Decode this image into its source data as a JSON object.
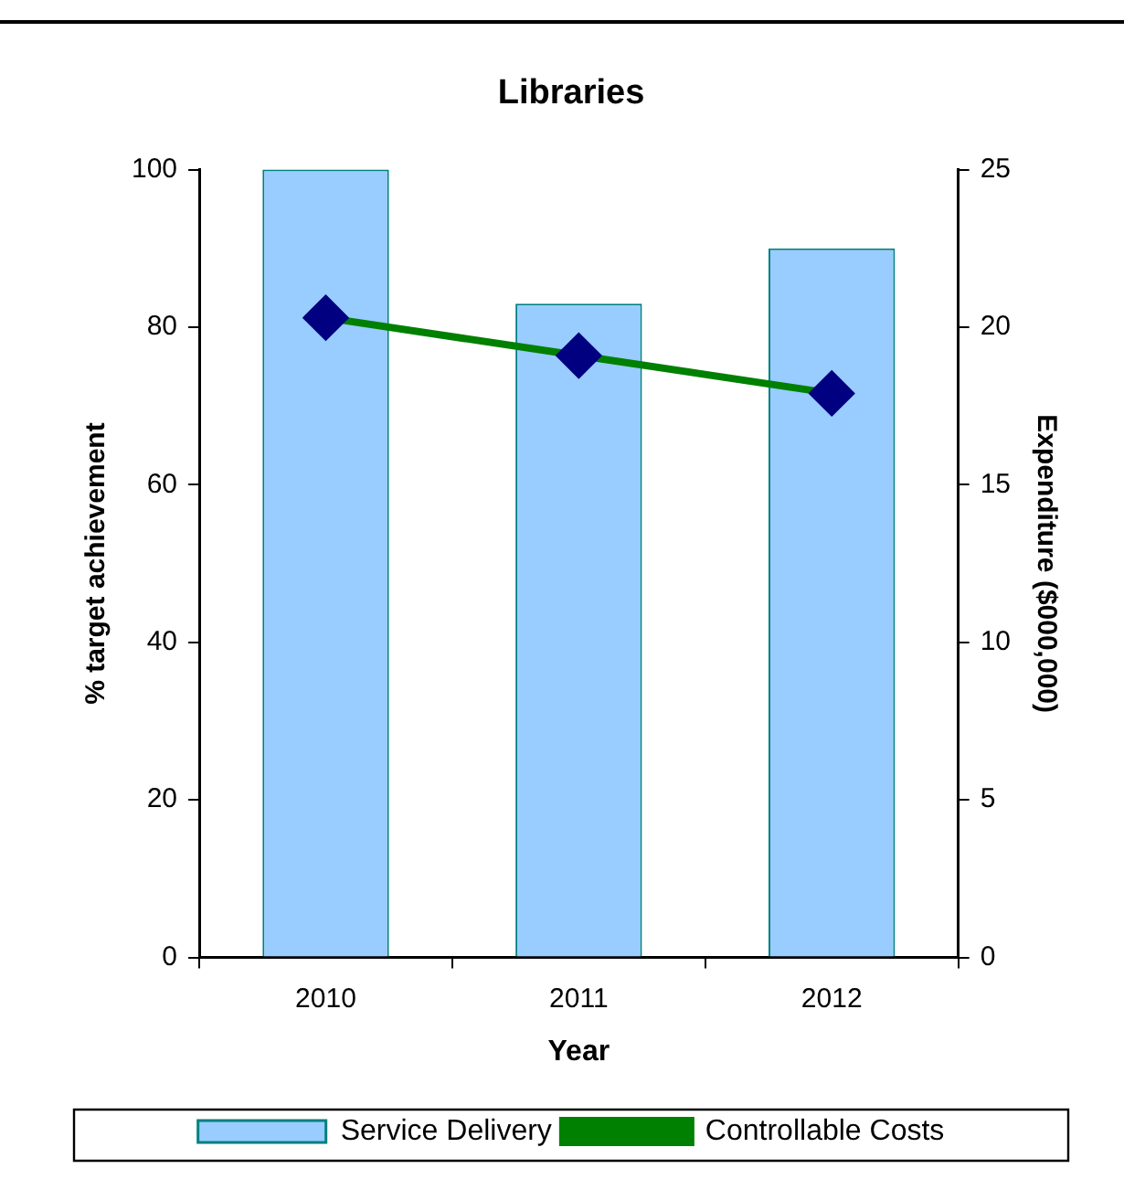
{
  "chart_data": {
    "type": "bar",
    "title": "Libraries",
    "xlabel": "Year",
    "ylabel": "% target achievement",
    "y2label": "Expenditure ($000,000)",
    "categories": [
      "2010",
      "2011",
      "2012"
    ],
    "series": [
      {
        "name": "Service Delivery",
        "color": "#99ccff",
        "values": [
          100,
          83,
          90
        ]
      },
      {
        "name": "Controllable Costs",
        "type": "line",
        "axis": "y2",
        "color": "#008000",
        "marker": "diamond",
        "values": [
          20.3,
          19.1,
          17.9
        ]
      }
    ],
    "ylim": [
      0,
      100
    ],
    "yticks": [
      0,
      20,
      40,
      60,
      80,
      100
    ],
    "y2lim": [
      0,
      25
    ],
    "y2ticks": [
      0,
      5,
      10,
      15,
      20,
      25
    ],
    "grid": false,
    "legend": "bottom"
  }
}
